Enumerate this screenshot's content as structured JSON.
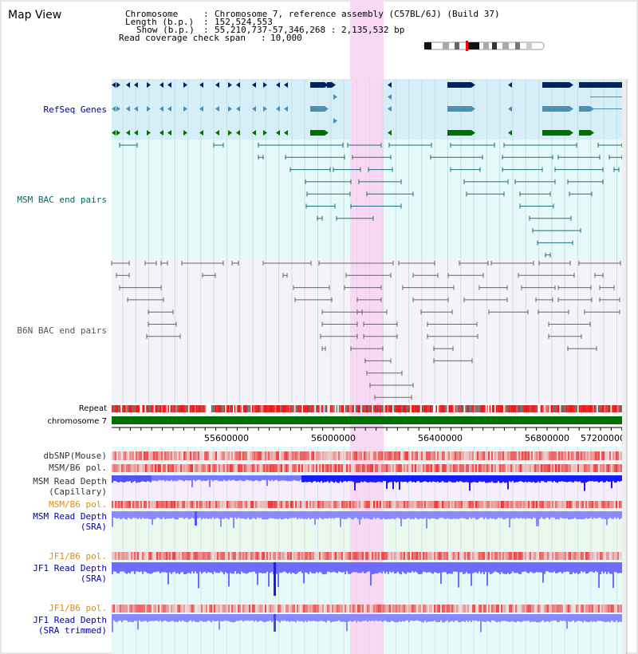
{
  "title": "Map View",
  "info": {
    "chromosome_label": "Chromosome",
    "chromosome_value": "Chromosome 7, reference assembly (C57BL/6J) (Build 37)",
    "length_label": "Length (b.p.)",
    "length_value": "152,524,553",
    "show_label": "Show (b.p.)",
    "show_value": "55,210,737-57,346,268 : 2,135,532 bp",
    "coverage_label": "Read coverage check span",
    "coverage_value": "10,000",
    "separator": ":"
  },
  "region": {
    "start": 55210737,
    "end": 57346268,
    "highlight_start": 56203000,
    "highlight_end": 56345000
  },
  "tracks": {
    "refseq": {
      "label": "RefSeq Genes",
      "color": "#000099"
    },
    "msm_bac": {
      "label": "MSM BAC end pairs",
      "color": "#006666"
    },
    "b6n_bac": {
      "label": "B6N BAC end pairs",
      "color": "#555555"
    },
    "repeat": {
      "label": "Repeat"
    },
    "chromosome": {
      "label": "chromosome 7"
    },
    "dbsnp": {
      "label": "dbSNP(Mouse)"
    },
    "msm_b6_pol_1": {
      "label": "MSM/B6 pol."
    },
    "msm_depth_cap": {
      "label_1": "MSM Read Depth",
      "label_2": "(Capillary)"
    },
    "msm_b6_pol_2": {
      "label": "MSM/B6 pol.",
      "color": "#e68a00"
    },
    "msm_depth_sra": {
      "label_1": "MSM Read Depth",
      "label_2": "(SRA)"
    },
    "jf1_b6_pol_1": {
      "label": "JF1/B6 pol.",
      "color": "#e68a00"
    },
    "jf1_depth_sra": {
      "label_1": "JF1 Read Depth",
      "label_2": "(SRA)"
    },
    "jf1_b6_pol_2": {
      "label": "JF1/B6 pol.",
      "color": "#e68a00"
    },
    "jf1_depth_trim": {
      "label_1": "JF1 Read Depth",
      "label_2": "(SRA trimmed)"
    }
  },
  "ruler": {
    "ticks": [
      "55600000",
      "56000000",
      "56400000",
      "56800000",
      "57200000"
    ]
  },
  "colors": {
    "highlight": "#f9d8f3",
    "refseq_bg": "#d6eef8",
    "cyan_bg": "#e6fafa",
    "gray_bg": "#f4f4f8",
    "gene_dark": "#002266",
    "gene_mid": "#4b8fb5",
    "gene_green": "#007000",
    "chromosome_bar": "#007000",
    "depth_dark": "#0000ff",
    "depth_light": "#7777ff"
  }
}
